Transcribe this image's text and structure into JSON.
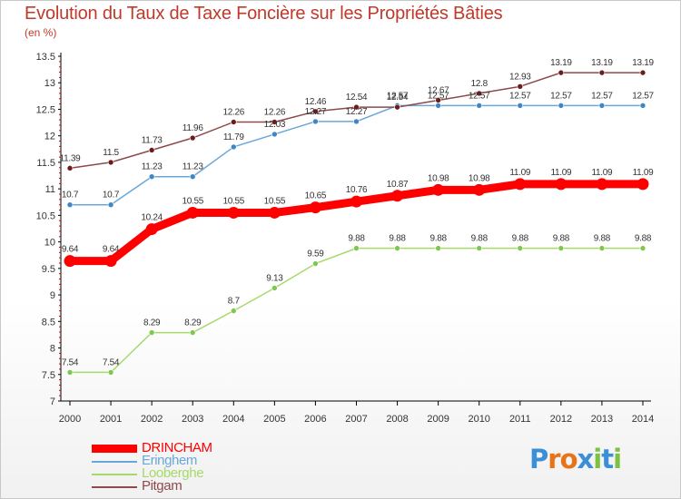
{
  "title": "Evolution du Taux de Taxe Foncière sur les Propriétés Bâties",
  "unit_label": "(en %)",
  "chart_data": {
    "type": "line",
    "x": [
      "2000",
      "2001",
      "2002",
      "2003",
      "2004",
      "2005",
      "2006",
      "2007",
      "2008",
      "2009",
      "2010",
      "2011",
      "2012",
      "2013",
      "2014"
    ],
    "ylim": [
      7,
      13.5
    ],
    "yticks": [
      "7",
      "7.5",
      "8",
      "8.5",
      "9",
      "9.5",
      "10",
      "10.5",
      "11",
      "11.5",
      "12",
      "12.5",
      "13",
      "13.5"
    ],
    "grid": false,
    "legend_position": "bottom-left",
    "series": [
      {
        "name": "DRINCHAM",
        "color": "#ff0000",
        "marker_color": "#ff0000",
        "values": [
          9.64,
          9.64,
          10.24,
          10.55,
          10.55,
          10.55,
          10.65,
          10.76,
          10.87,
          10.98,
          10.98,
          11.09,
          11.09,
          11.09,
          11.09
        ],
        "labels": [
          "9.64",
          "9.64",
          "10.24",
          "10.55",
          "10.55",
          "10.55",
          "10.65",
          "10.76",
          "10.87",
          "10.98",
          "10.98",
          "11.09",
          "11.09",
          "11.09",
          "11.09"
        ]
      },
      {
        "name": "Eringhem",
        "color": "#6aa7d8",
        "marker_color": "#3f86c5",
        "values": [
          10.7,
          10.7,
          11.23,
          11.23,
          11.79,
          12.03,
          12.27,
          12.27,
          12.57,
          12.57,
          12.57,
          12.57,
          12.57,
          12.57,
          12.57
        ],
        "labels": [
          "10.7",
          "10.7",
          "11.23",
          "11.23",
          "11.79",
          "12.03",
          "12.27",
          "12.27",
          "12.57",
          "12.57",
          "12.57",
          "12.57",
          "12.57",
          "12.57",
          "12.57"
        ]
      },
      {
        "name": "Looberghe",
        "color": "#a6d96a",
        "marker_color": "#7ec850",
        "values": [
          7.54,
          7.54,
          8.29,
          8.29,
          8.7,
          9.13,
          9.59,
          9.88,
          9.88,
          9.88,
          9.88,
          9.88,
          9.88,
          9.88,
          9.88
        ],
        "labels": [
          "7.54",
          "7.54",
          "8.29",
          "8.29",
          "8.7",
          "9.13",
          "9.59",
          "9.88",
          "9.88",
          "9.88",
          "9.88",
          "9.88",
          "9.88",
          "9.88",
          "9.88"
        ]
      },
      {
        "name": "Pitgam",
        "color": "#8c4a4a",
        "marker_color": "#6b1c1c",
        "values": [
          11.39,
          11.5,
          11.73,
          11.96,
          12.26,
          12.26,
          12.46,
          12.54,
          12.54,
          12.67,
          12.8,
          12.93,
          13.19,
          13.19,
          13.19
        ],
        "labels": [
          "11.39",
          "11.5",
          "11.73",
          "11.96",
          "12.26",
          "12.26",
          "12.46",
          "12.54",
          "12.54",
          "12.67",
          "12.8",
          "12.93",
          "13.19",
          "13.19",
          "13.19"
        ]
      }
    ]
  },
  "logo": {
    "text": "Proxiti",
    "colors": [
      "#3a8fd6",
      "#e8741a",
      "#e8741a",
      "#3a8fd6",
      "#7cc142",
      "#3a8fd6",
      "#7cc142"
    ]
  }
}
